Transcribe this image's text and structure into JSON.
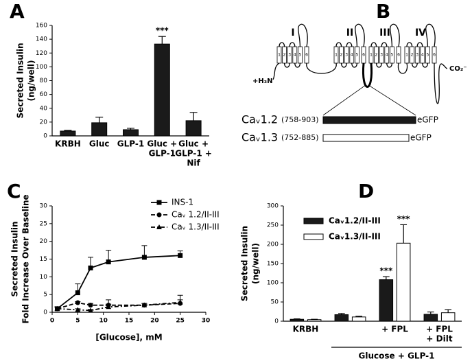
{
  "chart_data": [
    {
      "type": "bar",
      "panel": "A",
      "ylabel": [
        "Secreted Insulin",
        "(ng/well)"
      ],
      "categories": [
        [
          "KRBH"
        ],
        [
          "Gluc"
        ],
        [
          "GLP-1"
        ],
        [
          "Gluc +",
          "GLP-1"
        ],
        [
          "Gluc +",
          "GLP-1 +",
          "Nif"
        ]
      ],
      "values": [
        7,
        19,
        9,
        133,
        22
      ],
      "errors": [
        1,
        8,
        2,
        11,
        12
      ],
      "stars": [
        null,
        null,
        null,
        "***",
        null
      ],
      "color": "#1a1a1a",
      "ylim": [
        0,
        160
      ],
      "yticks": [
        0,
        20,
        40,
        60,
        80,
        100,
        120,
        140,
        160
      ]
    },
    {
      "type": "line",
      "panel": "C",
      "xlabel": "[Glucose], mM",
      "ylabel": [
        "Secreted Insulin",
        "Fold Increase Over Baseline"
      ],
      "x": [
        1,
        5,
        7.5,
        11,
        18,
        25
      ],
      "series": [
        {
          "name": "INS-1",
          "color": "#000000",
          "marker": "square",
          "dash": "solid",
          "values": [
            1,
            5.5,
            12.5,
            14.2,
            15.5,
            16
          ],
          "errors": [
            0.5,
            2.5,
            3,
            3.3,
            3.3,
            1.3
          ]
        },
        {
          "name": "Caᵥ 1.2/II-III",
          "color": "#000000",
          "marker": "circle",
          "dash": "dashed",
          "values": [
            1,
            2.7,
            2,
            2,
            2,
            2.5
          ],
          "errors": [
            0.5,
            0.3,
            0.5,
            1.5,
            0.5,
            1
          ]
        },
        {
          "name": "Caᵥ 1.3/II-III",
          "color": "#000000",
          "marker": "triangle",
          "dash": "dashdot",
          "values": [
            1,
            0.7,
            0.5,
            1.5,
            2,
            2.8
          ],
          "errors": [
            0.5,
            0.3,
            0.3,
            0.8,
            0.5,
            2
          ]
        }
      ],
      "xlim": [
        0,
        30
      ],
      "xticks": [
        0,
        5,
        10,
        15,
        20,
        25,
        30
      ],
      "ylim": [
        0,
        30
      ],
      "yticks": [
        0,
        5,
        10,
        15,
        20,
        25,
        30
      ],
      "legend": "upper right"
    },
    {
      "type": "bar",
      "panel": "D",
      "ylabel": [
        "Secreted Insulin",
        "(ng/well)"
      ],
      "categories": [
        [
          "KRBH"
        ],
        null,
        [
          "+ FPL"
        ],
        [
          "+ FPL",
          "+ Dilt"
        ]
      ],
      "group_label": "Glucose + GLP-1",
      "series": [
        {
          "name": "Caᵥ1.2/II-III",
          "color": "#1a1a1a",
          "values": [
            5,
            17,
            108,
            18
          ],
          "errors": [
            1,
            3,
            8,
            6
          ],
          "stars": [
            null,
            null,
            "***",
            null
          ]
        },
        {
          "name": "Caᵥ1.3/II-III",
          "color": "#ffffff",
          "values": [
            4,
            11,
            203,
            22
          ],
          "errors": [
            1,
            2,
            48,
            8
          ],
          "stars": [
            null,
            null,
            "***",
            null
          ]
        }
      ],
      "ylim": [
        0,
        300
      ],
      "yticks": [
        0,
        50,
        100,
        150,
        200,
        250,
        300
      ],
      "legend": "upper left"
    }
  ],
  "diagram": {
    "panel": "B",
    "domains": [
      "I",
      "II",
      "III",
      "IV"
    ],
    "segments": [
      "1",
      "2",
      "3",
      "4",
      "5",
      "6"
    ],
    "n_terminus": "+H₃N",
    "c_terminus": "CO₂⁻",
    "constructs": [
      {
        "name": "Caᵥ1.2",
        "range": "(758-903)",
        "tag": "eGFP",
        "fill": "#1a1a1a"
      },
      {
        "name": "Caᵥ1.3",
        "range": "(752-885)",
        "tag": "eGFP",
        "fill": "#ffffff"
      }
    ]
  }
}
